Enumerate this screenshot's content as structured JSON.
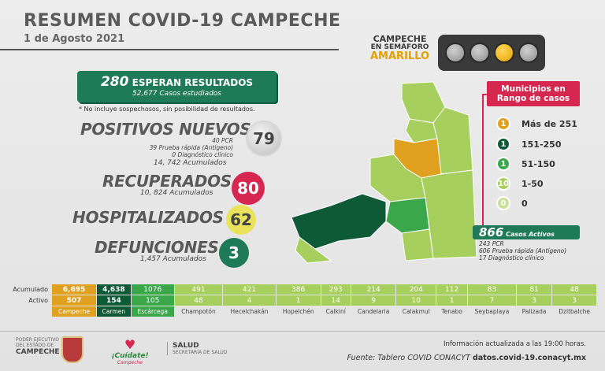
{
  "header": {
    "title": "RESUMEN COVID-19 CAMPECHE",
    "date": "1 de Agosto 2021"
  },
  "semaforo": {
    "line1": "CAMPECHE",
    "line2": "EN SEMÁFORO",
    "line3": "AMARILLO",
    "active_color": "#e5a300"
  },
  "espera": {
    "count": "280",
    "label": "ESPERAN RESULTADOS",
    "studied": "52,677 Casos estudiados",
    "note": "* No incluye sospechosos, sin posibilidad de resultados."
  },
  "positivos": {
    "label": "POSITIVOS NUEVOS",
    "pcr": "40 PCR",
    "rapida": "39 Prueba rápida (Antígeno)",
    "clinico": "0 Diagnóstico clínico",
    "acumulados": "14, 742 Acumulados",
    "value": "79"
  },
  "recuperados": {
    "label": "RECUPERADOS",
    "acumulados": "10, 824 Acumulados",
    "value": "80"
  },
  "hospitalizados": {
    "label": "HOSPITALIZADOS",
    "value": "62"
  },
  "defunciones": {
    "label": "DEFUNCIONES",
    "acumulados": "1,457 Acumulados",
    "value": "3"
  },
  "municipios": {
    "title": "Municipios en Rango de casos",
    "ranges": [
      {
        "count": "1",
        "label": "Más de 251",
        "color": "#e0a020"
      },
      {
        "count": "1",
        "label": "151-250",
        "color": "#0f5a36"
      },
      {
        "count": "1",
        "label": "51-150",
        "color": "#3aa74a"
      },
      {
        "count": "10",
        "label": "1-50",
        "color": "#a7cf5e"
      },
      {
        "count": "0",
        "label": "0",
        "color": "#c9e29a"
      }
    ]
  },
  "activos": {
    "count": "866",
    "label": "Casos Activos",
    "pcr": "243 PCR",
    "rapida": "606 Prueba rápida (Antígeno)",
    "clinico": "17 Diagnóstico clínico"
  },
  "table": {
    "row_acumulado": "Acumulado",
    "row_activo": "Activo",
    "municipios": [
      {
        "name": "Campeche",
        "acumulado": "6,695",
        "activo": "507",
        "style": "orange"
      },
      {
        "name": "Carmen",
        "acumulado": "4,638",
        "activo": "154",
        "style": "dark"
      },
      {
        "name": "Escárcega",
        "acumulado": "1076",
        "activo": "105",
        "style": "mid"
      },
      {
        "name": "Champotón",
        "acumulado": "491",
        "activo": "48",
        "style": "light"
      },
      {
        "name": "Hecelchakán",
        "acumulado": "421",
        "activo": "4",
        "style": "light"
      },
      {
        "name": "Hopelchén",
        "acumulado": "386",
        "activo": "1",
        "style": "light"
      },
      {
        "name": "Calkiní",
        "acumulado": "293",
        "activo": "14",
        "style": "light"
      },
      {
        "name": "Candelaria",
        "acumulado": "214",
        "activo": "9",
        "style": "light"
      },
      {
        "name": "Calakmul",
        "acumulado": "204",
        "activo": "10",
        "style": "light"
      },
      {
        "name": "Tenabo",
        "acumulado": "112",
        "activo": "1",
        "style": "light"
      },
      {
        "name": "Seybaplaya",
        "acumulado": "83",
        "activo": "7",
        "style": "light"
      },
      {
        "name": "Palizada",
        "acumulado": "81",
        "activo": "3",
        "style": "light"
      },
      {
        "name": "Dzitbalche",
        "acumulado": "48",
        "activo": "3",
        "style": "light"
      }
    ]
  },
  "footer": {
    "gov_line1": "PODER EJECUTIVO",
    "gov_line2": "DEL ESTADO DE",
    "gov_line3": "CAMPECHE",
    "cuidate1": "¡Cuídate!",
    "cuidate2": "Campeche",
    "salud1": "SALUD",
    "salud2": "SECRETARÍA DE SALUD",
    "info": "Información actualizada a las 19:00 horas.",
    "fuente_label": "Fuente: Tablero COVID CONACYT",
    "fuente_url": "datos.covid-19.conacyt.mx"
  }
}
